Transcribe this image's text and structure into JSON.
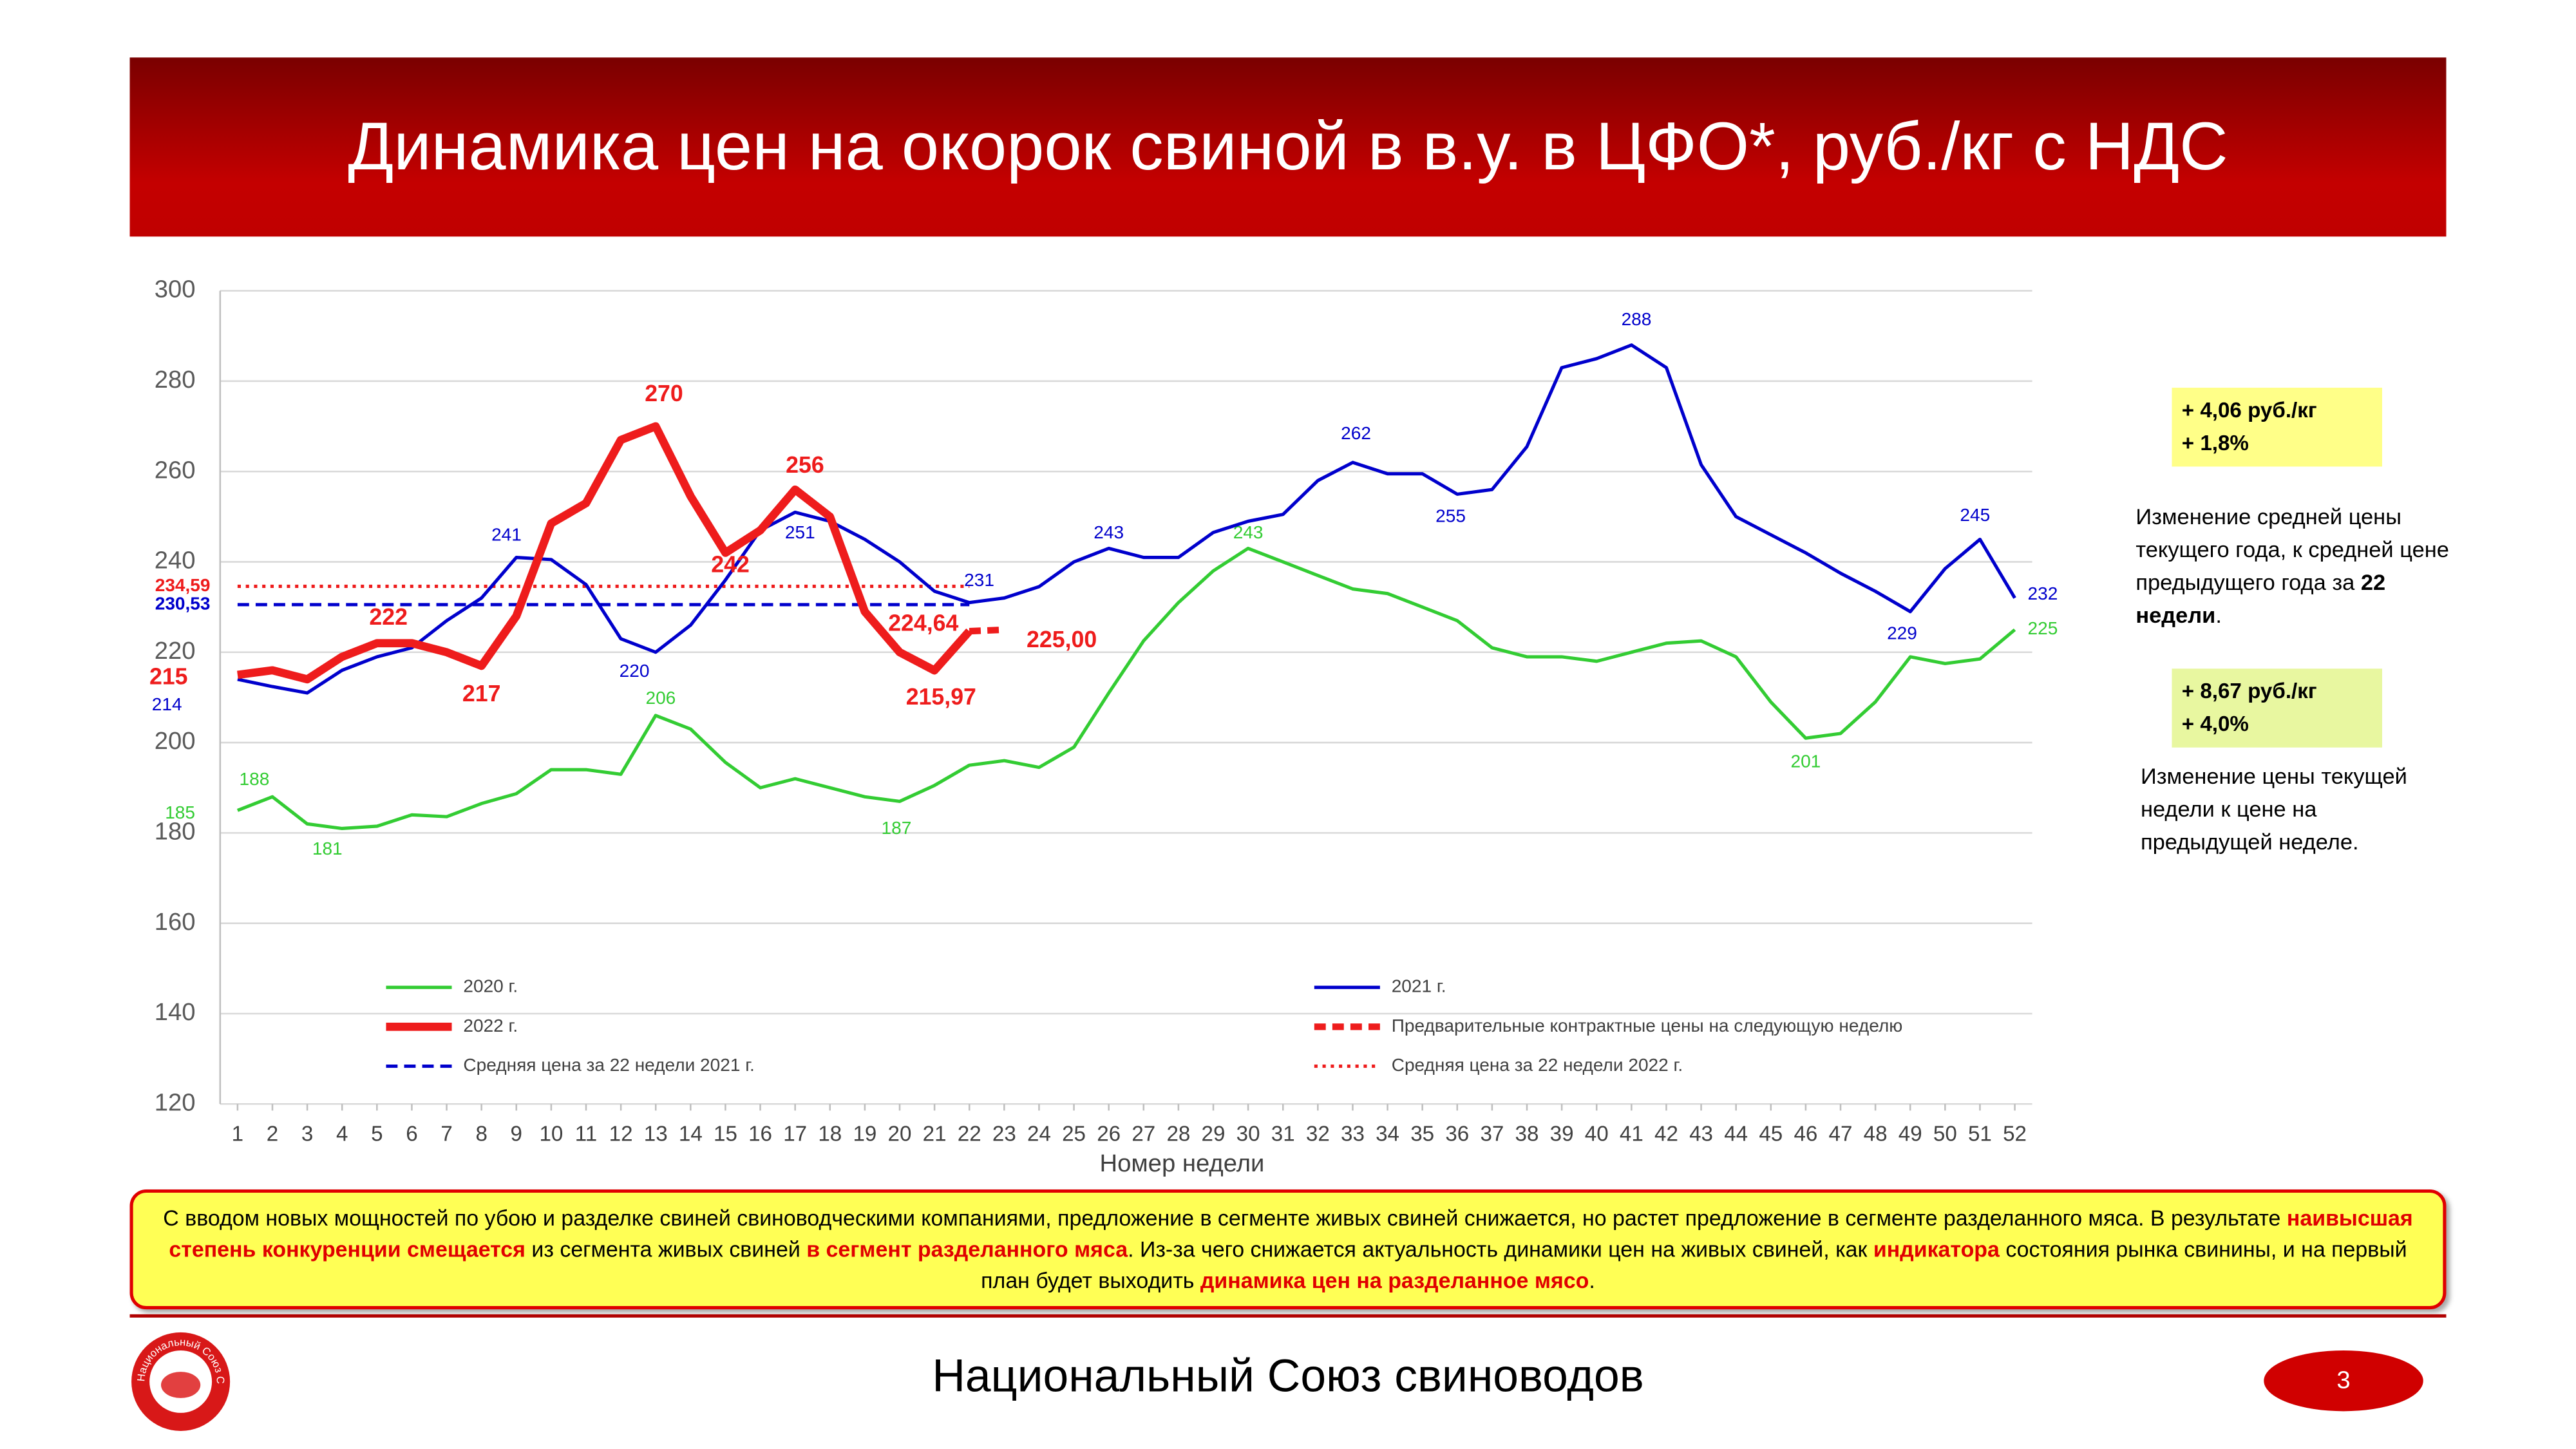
{
  "header": {
    "title": "Динамика цен на окорок свиной в в.у. в ЦФО*, руб./кг с НДС"
  },
  "chart_data": {
    "type": "line",
    "x_label": "Номер недели",
    "x": [
      1,
      2,
      3,
      4,
      5,
      6,
      7,
      8,
      9,
      10,
      11,
      12,
      13,
      14,
      15,
      16,
      17,
      18,
      19,
      20,
      21,
      22,
      23,
      24,
      25,
      26,
      27,
      28,
      29,
      30,
      31,
      32,
      33,
      34,
      35,
      36,
      37,
      38,
      39,
      40,
      41,
      42,
      43,
      44,
      45,
      46,
      47,
      48,
      49,
      50,
      51,
      52
    ],
    "xlim": [
      0.5,
      52.5
    ],
    "xticks": [
      1,
      2,
      3,
      4,
      5,
      6,
      7,
      8,
      9,
      10,
      11,
      12,
      13,
      14,
      15,
      16,
      17,
      18,
      19,
      20,
      21,
      22,
      23,
      24,
      25,
      26,
      27,
      28,
      29,
      30,
      31,
      32,
      33,
      34,
      35,
      36,
      37,
      38,
      39,
      40,
      41,
      42,
      43,
      44,
      45,
      46,
      47,
      48,
      49,
      50,
      51,
      52
    ],
    "ylim": [
      120,
      300
    ],
    "yticks": [
      120,
      140,
      160,
      180,
      200,
      220,
      240,
      260,
      280,
      300
    ],
    "grid": true,
    "series": [
      {
        "name": "2020 г.",
        "color": "#33cc33",
        "width": 2,
        "style": "solid",
        "values": [
          185,
          188,
          182,
          181,
          181.5,
          184,
          183.6,
          186.5,
          188.7,
          194,
          194,
          193,
          206,
          203,
          195.6,
          190,
          192,
          190,
          188,
          187,
          190.5,
          195,
          196,
          194.5,
          199,
          211,
          222.5,
          231,
          238,
          243,
          240,
          237,
          234,
          233,
          230,
          227,
          221,
          219,
          219,
          218,
          220,
          222,
          222.5,
          219,
          209,
          201,
          202,
          209,
          219,
          217.5,
          218.5,
          225
        ],
        "value_labels": {
          "0": "185",
          "1": "188",
          "3": "181",
          "12": "206",
          "19": "187",
          "29": "243",
          "45": "201",
          "51": "225"
        }
      },
      {
        "name": "2021 г.",
        "color": "#0000cc",
        "width": 2,
        "style": "solid",
        "values": [
          214,
          212.4,
          211,
          216,
          219,
          221,
          227,
          232,
          241,
          240.5,
          235,
          223,
          220,
          226,
          236,
          247,
          251,
          249,
          245,
          240,
          233.5,
          231,
          232,
          234.5,
          240,
          243,
          241,
          241,
          246.5,
          249,
          250.5,
          258,
          262,
          259.5,
          259.5,
          255,
          256,
          265.5,
          283,
          285,
          288,
          283,
          261.5,
          250,
          246,
          242,
          237.5,
          233.5,
          229,
          238.5,
          245,
          232
        ],
        "value_labels": {
          "0": "214",
          "8": "241",
          "12": "220",
          "16": "251",
          "21": "231",
          "25": "243",
          "32": "262",
          "35": "255",
          "40": "288",
          "48": "229",
          "50": "245",
          "51": "232"
        }
      },
      {
        "name": "2022 г.",
        "color": "#ee1c1c",
        "width": 5,
        "style": "solid",
        "values": [
          215,
          216,
          214,
          219,
          222,
          222,
          220,
          217,
          228,
          248.5,
          253,
          267,
          270,
          254.5,
          242,
          247,
          256,
          250,
          229,
          220,
          215.97,
          224.64,
          null,
          null,
          null,
          null,
          null,
          null,
          null,
          null,
          null,
          null,
          null,
          null,
          null,
          null,
          null,
          null,
          null,
          null,
          null,
          null,
          null,
          null,
          null,
          null,
          null,
          null,
          null,
          null,
          null,
          null
        ],
        "value_labels": {
          "0": "215",
          "4": "222",
          "7": "217",
          "12": "270",
          "14": "242",
          "16": "256",
          "20": "215,97",
          "21": "224,64"
        }
      },
      {
        "name": "Предварительные контрактные цены на следующую неделю",
        "color": "#ee1c1c",
        "width": 4,
        "style": "dashed",
        "values": [
          null,
          null,
          null,
          null,
          null,
          null,
          null,
          null,
          null,
          null,
          null,
          null,
          null,
          null,
          null,
          null,
          null,
          null,
          null,
          null,
          null,
          224.64,
          225,
          null,
          null,
          null,
          null,
          null,
          null,
          null,
          null,
          null,
          null,
          null,
          null,
          null,
          null,
          null,
          null,
          null,
          null,
          null,
          null,
          null,
          null,
          null,
          null,
          null,
          null,
          null,
          null,
          null
        ],
        "value_labels": {
          "22": "225,00"
        }
      }
    ],
    "reference_lines": [
      {
        "name": "Средняя цена за 22 недели 2021 г.",
        "color": "#0000cc",
        "style": "dashed",
        "value": 230.53,
        "value_label": "230,53",
        "x": [
          1,
          22
        ]
      },
      {
        "name": "Средняя цена за 22 недели 2022 г.",
        "color": "#ee1c1c",
        "style": "dotted",
        "value": 234.59,
        "value_label": "234,59",
        "x": [
          1,
          22
        ]
      }
    ]
  },
  "side": {
    "box1": {
      "line1": "+ 4,06 руб./кг",
      "line2": "+ 1,8%"
    },
    "text1": {
      "before": "Изменение средней цены текущего года, к средней цене предыдущего года за ",
      "bold": "22 недели",
      "after": "."
    },
    "box2": {
      "line1": "+ 8,67 руб./кг",
      "line2": "+ 4,0%"
    },
    "text2": "Изменение цены текущей недели к цене на предыдущей неделе."
  },
  "note": {
    "segments": [
      {
        "text": "С вводом новых мощностей по убою и разделке свиней свиноводческими компаниями, предложение в сегменте живых свиней снижается, но растет предложение в сегменте разделанного мяса.  В результате ",
        "emphasis": false
      },
      {
        "text": "наивысшая степень конкуренции смещается",
        "emphasis": true
      },
      {
        "text": " из сегмента живых свиней ",
        "emphasis": false
      },
      {
        "text": "в сегмент разделанного мяса",
        "emphasis": true
      },
      {
        "text": ". Из-за чего снижается актуальность динамики цен на живых свиней, как ",
        "emphasis": false
      },
      {
        "text": "индикатора",
        "emphasis": true
      },
      {
        "text": " состояния рынка свинины, и на первый план будет выходить ",
        "emphasis": false
      },
      {
        "text": "динамика цен на разделанное мясо",
        "emphasis": true
      },
      {
        "text": ".",
        "emphasis": false
      }
    ]
  },
  "footer": {
    "org": "Национальный Союз свиноводов",
    "page": "3",
    "logo_text": "Национальный Союз Свиноводов"
  }
}
